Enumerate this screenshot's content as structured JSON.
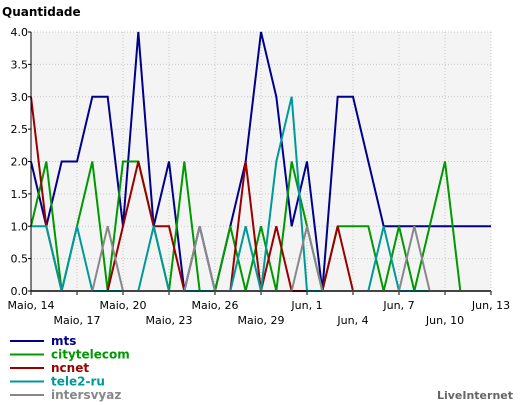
{
  "chart_data": {
    "type": "line",
    "title": "",
    "ylabel": "Quantidade",
    "xlabel": "",
    "ylim": [
      0,
      4
    ],
    "yticks": [
      "0.0",
      "0.5",
      "1.0",
      "1.5",
      "2.0",
      "2.5",
      "3.0",
      "3.5",
      "4.0"
    ],
    "x_tick_labels": [
      "Maio, 14",
      "Maio, 17",
      "Maio, 20",
      "Maio, 23",
      "Maio, 26",
      "Maio, 29",
      "Jun, 1",
      "Jun, 4",
      "Jun, 7",
      "Jun, 10",
      "Jun, 13"
    ],
    "grid": true,
    "legend": "bottom-left",
    "series": [
      {
        "name": "mts",
        "color": "#00008b",
        "values": [
          2,
          1,
          2,
          2,
          3,
          3,
          1,
          4,
          1,
          2,
          0,
          1,
          0,
          1,
          2,
          4,
          3,
          1,
          2,
          0,
          3,
          3,
          2,
          1,
          1,
          1,
          1,
          1,
          1,
          1,
          1
        ]
      },
      {
        "name": "citytelecom",
        "color": "#009900",
        "values": [
          1,
          2,
          0,
          1,
          2,
          0,
          2,
          2,
          1,
          0,
          2,
          0,
          0,
          1,
          0,
          1,
          0,
          2,
          1,
          0,
          1,
          1,
          1,
          0,
          1,
          0,
          1,
          2,
          0,
          0,
          0
        ]
      },
      {
        "name": "ncnet",
        "color": "#990000",
        "values": [
          3,
          1,
          0,
          0,
          0,
          0,
          1,
          2,
          1,
          1,
          0,
          0,
          0,
          0,
          2,
          0,
          1,
          0,
          0,
          0,
          1,
          0,
          0,
          0,
          0,
          0,
          0,
          0,
          0,
          0,
          0
        ]
      },
      {
        "name": "tele2-ru",
        "color": "#009999",
        "values": [
          1,
          1,
          0,
          1,
          0,
          0,
          0,
          0,
          1,
          0,
          0,
          0,
          0,
          0,
          1,
          0,
          2,
          3,
          0,
          0,
          0,
          0,
          0,
          1,
          0,
          0,
          0,
          0,
          0,
          0,
          0
        ]
      },
      {
        "name": "intersvyaz",
        "color": "#888888",
        "values": [
          0,
          0,
          0,
          0,
          0,
          1,
          0,
          0,
          0,
          0,
          0,
          1,
          0,
          0,
          0,
          0,
          0,
          0,
          1,
          0,
          0,
          0,
          0,
          0,
          0,
          1,
          0,
          0,
          0,
          0,
          0
        ]
      }
    ]
  },
  "brand": "LiveInternet"
}
